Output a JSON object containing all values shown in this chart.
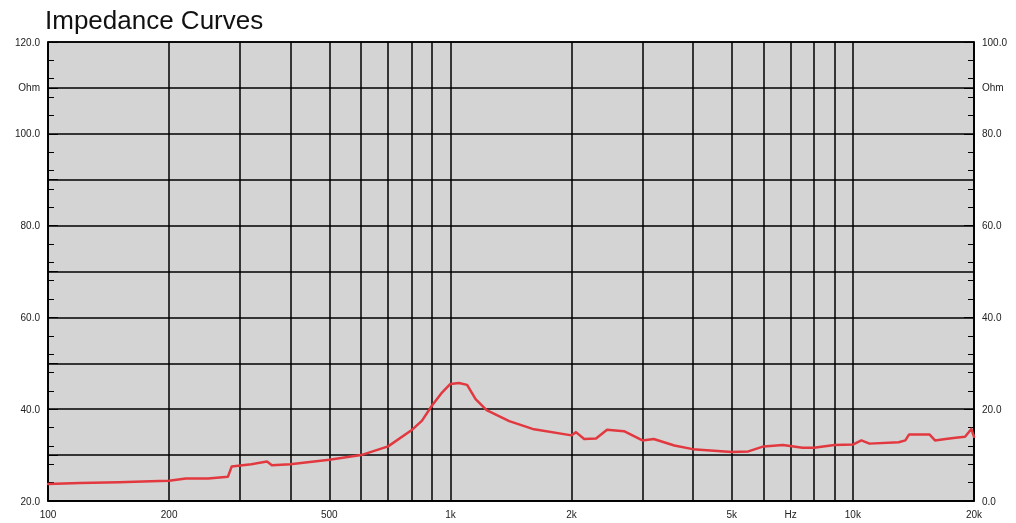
{
  "chart_data": {
    "type": "line",
    "title": "Impedance Curves",
    "x": [
      100,
      120,
      150,
      180,
      200,
      220,
      250,
      280,
      286,
      320,
      350,
      360,
      400,
      500,
      600,
      700,
      800,
      850,
      900,
      950,
      1000,
      1050,
      1100,
      1155,
      1230,
      1400,
      1600,
      2000,
      2050,
      2150,
      2300,
      2450,
      2700,
      3000,
      3200,
      3600,
      4000,
      5000,
      5500,
      6000,
      6700,
      7500,
      8000,
      9000,
      10000,
      10500,
      11000,
      13000,
      13500,
      13800,
      15500,
      16000,
      17000,
      18000,
      19000,
      19700,
      20000
    ],
    "series": [
      {
        "color": "#e2383f",
        "values": [
          23.7,
          23.9,
          24.1,
          24.3,
          24.4,
          24.9,
          24.9,
          25.3,
          27.5,
          28.0,
          28.6,
          27.8,
          28.0,
          29.0,
          30.0,
          31.9,
          35.4,
          37.5,
          40.8,
          43.5,
          45.5,
          45.7,
          45.3,
          42.2,
          39.8,
          37.4,
          35.7,
          34.3,
          35.0,
          33.5,
          33.6,
          35.5,
          35.2,
          33.2,
          33.5,
          32.1,
          31.3,
          30.7,
          30.8,
          31.9,
          32.2,
          31.6,
          31.6,
          32.2,
          32.3,
          33.2,
          32.5,
          32.8,
          33.2,
          34.5,
          34.5,
          33.2,
          33.5,
          33.8,
          34.0,
          35.7,
          34.0
        ]
      }
    ],
    "log": "x",
    "xlim": [
      100,
      20000
    ],
    "xticks": [
      100,
      200,
      {
        "value": 300,
        "label": null
      },
      {
        "value": 400,
        "label": null
      },
      500,
      {
        "value": 600,
        "label": null
      },
      {
        "value": 700,
        "label": null
      },
      {
        "value": 800,
        "label": null
      },
      {
        "value": 900,
        "label": null
      },
      {
        "value": 1000,
        "label": "1k"
      },
      {
        "value": 2000,
        "label": "2k"
      },
      {
        "value": 3000,
        "label": null
      },
      {
        "value": 4000,
        "label": null
      },
      {
        "value": 5000,
        "label": "5k"
      },
      {
        "value": 6000,
        "label": null
      },
      {
        "value": 7000,
        "label": "Hz"
      },
      {
        "value": 8000,
        "label": null
      },
      {
        "value": 9000,
        "label": null
      },
      {
        "value": 10000,
        "label": "10k"
      },
      {
        "value": 20000,
        "label": "20k"
      }
    ],
    "ylim": [
      20,
      120
    ],
    "yticks": [
      {
        "value": 20,
        "label": "20.0"
      },
      {
        "value": 30,
        "label": null
      },
      {
        "value": 40,
        "label": "40.0"
      },
      {
        "value": 50,
        "label": null
      },
      {
        "value": 60,
        "label": "60.0"
      },
      {
        "value": 70,
        "label": null
      },
      {
        "value": 80,
        "label": "80.0"
      },
      {
        "value": 90,
        "label": null
      },
      {
        "value": 100,
        "label": "100.0"
      },
      {
        "value": 110,
        "label": "Ohm"
      },
      {
        "value": 120,
        "label": "120.0"
      }
    ],
    "y2lim": [
      0,
      100
    ],
    "y2ticks": [
      {
        "value": 0,
        "label": "0.0"
      },
      {
        "value": 20,
        "label": "20.0"
      },
      {
        "value": 40,
        "label": "40.0"
      },
      {
        "value": 60,
        "label": "60.0"
      },
      {
        "value": 80,
        "label": "80.0"
      },
      {
        "value": 90,
        "label": "Ohm"
      },
      {
        "value": 100,
        "label": "100.0"
      }
    ],
    "grid": true,
    "marker": "none",
    "line_style": "solid"
  }
}
